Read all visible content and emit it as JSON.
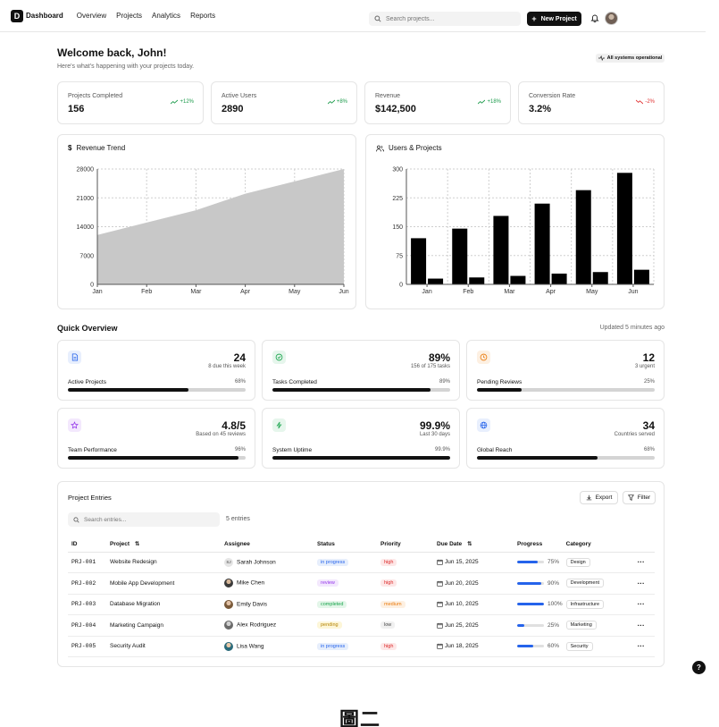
{
  "nav": {
    "brand_letter": "D",
    "brand": "Dashboard",
    "links": [
      "Overview",
      "Projects",
      "Analytics",
      "Reports"
    ],
    "search_placeholder": "Search projects...",
    "new_project": "New Project"
  },
  "welcome": {
    "title": "Welcome back, John!",
    "subtitle": "Here's what's happening with your projects today.",
    "status": "All systems operational"
  },
  "stats": [
    {
      "label": "Projects Completed",
      "value": "156",
      "change": "+12%",
      "trend": "up"
    },
    {
      "label": "Active Users",
      "value": "2890",
      "change": "+8%",
      "trend": "up"
    },
    {
      "label": "Revenue",
      "value": "$142,500",
      "change": "+18%",
      "trend": "up"
    },
    {
      "label": "Conversion Rate",
      "value": "3.2%",
      "change": "-2%",
      "trend": "down"
    }
  ],
  "chart_data": [
    {
      "type": "area",
      "title": "Revenue Trend",
      "categories": [
        "Jan",
        "Feb",
        "Mar",
        "Apr",
        "May",
        "Jun"
      ],
      "values": [
        12000,
        15000,
        18000,
        22000,
        25000,
        28000
      ],
      "yticks": [
        "0",
        "7000",
        "14000",
        "21000",
        "28000"
      ],
      "ylim": [
        0,
        28000
      ],
      "grid": true
    },
    {
      "type": "bar",
      "title": "Users & Projects",
      "categories": [
        "Jan",
        "Feb",
        "Mar",
        "Apr",
        "May",
        "Jun"
      ],
      "series": [
        {
          "values": [
            120,
            145,
            178,
            210,
            245,
            290
          ]
        },
        {
          "values": [
            15,
            18,
            22,
            28,
            32,
            38
          ]
        }
      ],
      "yticks": [
        "0",
        "75",
        "150",
        "225",
        "300"
      ],
      "ylim": [
        0,
        300
      ],
      "grid": true
    }
  ],
  "overview": {
    "title": "Quick Overview",
    "updated": "Updated 5 minutes ago",
    "cards": [
      {
        "icon": "file-icon",
        "color": "#2563eb",
        "bg": "#e8effd",
        "big": "24",
        "small": "8 due this week",
        "name": "Active Projects",
        "pct": "68%",
        "progress": 68
      },
      {
        "icon": "check-circle-icon",
        "color": "#16a34a",
        "bg": "#e6f6ec",
        "big": "89%",
        "small": "156 of 175 tasks",
        "name": "Tasks Completed",
        "pct": "89%",
        "progress": 89
      },
      {
        "icon": "clock-icon",
        "color": "#ea7a0c",
        "bg": "#fdf0e2",
        "big": "12",
        "small": "3 urgent",
        "name": "Pending Reviews",
        "pct": "25%",
        "progress": 25
      },
      {
        "icon": "star-icon",
        "color": "#9333ea",
        "bg": "#f3e8fd",
        "big": "4.8/5",
        "small": "Based on 45 reviews",
        "name": "Team Performance",
        "pct": "96%",
        "progress": 96
      },
      {
        "icon": "lightning-icon",
        "color": "#16a34a",
        "bg": "#e6f6ec",
        "big": "99.9%",
        "small": "Last 30 days",
        "name": "System Uptime",
        "pct": "99.9%",
        "progress": 99.9
      },
      {
        "icon": "globe-icon",
        "color": "#2563eb",
        "bg": "#e8effd",
        "big": "34",
        "small": "Countries served",
        "name": "Global Reach",
        "pct": "68%",
        "progress": 68
      }
    ]
  },
  "entries": {
    "title": "Project Entries",
    "export": "Export",
    "filter": "Filter",
    "search_placeholder": "Search entries...",
    "count": "5 entries",
    "columns": [
      "ID",
      "Project",
      "Assignee",
      "Status",
      "Priority",
      "Due Date",
      "Progress",
      "Category"
    ],
    "rows": [
      {
        "id": "PRJ-001",
        "project": "Website Redesign",
        "assignee": "Sarah Johnson",
        "initials": "SJ",
        "status": "in progress",
        "priority": "high",
        "due": "Jun 15, 2025",
        "progress": 75,
        "progress_label": "75%",
        "category": "Design"
      },
      {
        "id": "PRJ-002",
        "project": "Mobile App Development",
        "assignee": "Mike Chen",
        "initials": "",
        "status": "review",
        "priority": "high",
        "due": "Jun 20, 2025",
        "progress": 90,
        "progress_label": "90%",
        "category": "Development"
      },
      {
        "id": "PRJ-003",
        "project": "Database Migration",
        "assignee": "Emily Davis",
        "initials": "",
        "status": "completed",
        "priority": "medium",
        "due": "Jun 10, 2025",
        "progress": 100,
        "progress_label": "100%",
        "category": "Infrastructure"
      },
      {
        "id": "PRJ-004",
        "project": "Marketing Campaign",
        "assignee": "Alex Rodriguez",
        "initials": "",
        "status": "pending",
        "priority": "low",
        "due": "Jun 25, 2025",
        "progress": 25,
        "progress_label": "25%",
        "category": "Marketing"
      },
      {
        "id": "PRJ-005",
        "project": "Security Audit",
        "assignee": "Lisa Wang",
        "initials": "",
        "status": "in progress",
        "priority": "high",
        "due": "Jun 18, 2025",
        "progress": 60,
        "progress_label": "60%",
        "category": "Security"
      }
    ]
  },
  "help": "?",
  "watermark": "圖二",
  "colors": {
    "status": {
      "in progress": [
        "#e6eefc",
        "#2563eb"
      ],
      "review": [
        "#f3e8fd",
        "#9333ea"
      ],
      "completed": [
        "#e3f6e9",
        "#16a34a"
      ],
      "pending": [
        "#fdf6d8",
        "#b58405"
      ]
    },
    "priority": {
      "high": [
        "#fde7e7",
        "#dc2626"
      ],
      "medium": [
        "#fdf0e2",
        "#ea7a0c"
      ],
      "low": [
        "#f0f0f0",
        "#444"
      ]
    }
  }
}
